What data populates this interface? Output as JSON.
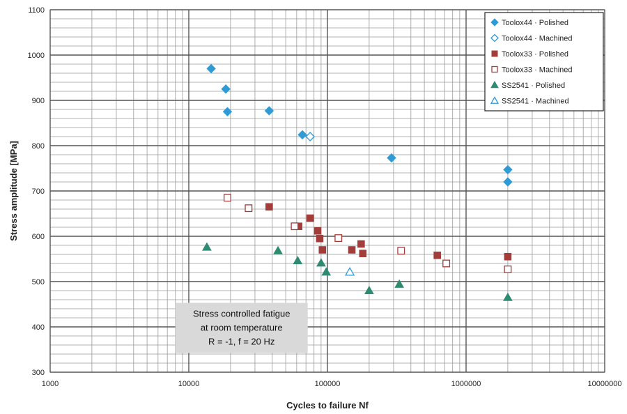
{
  "chart_data": {
    "type": "scatter",
    "title": "",
    "xlabel": "Cycles to failure Nf",
    "ylabel": "Stress amplitude [MPa]",
    "x_scale": "log",
    "xlim": [
      1000,
      10000000
    ],
    "ylim": [
      300,
      1100
    ],
    "x_ticks": [
      "1000",
      "10000",
      "100000",
      "1000000",
      "10000000"
    ],
    "y_ticks": [
      "300",
      "400",
      "500",
      "600",
      "700",
      "800",
      "900",
      "1000",
      "1100"
    ],
    "grid": true,
    "legend_position": "top-right",
    "annotation": [
      "Stress controlled fatigue",
      "at room temperature",
      "R = -1, f = 20 Hz"
    ],
    "series": [
      {
        "name": "Toolox44 · Polished",
        "marker": "diamond",
        "filled": true,
        "color": "#2e9bd6",
        "points": [
          [
            14500,
            970
          ],
          [
            18500,
            925
          ],
          [
            19000,
            875
          ],
          [
            38000,
            877
          ],
          [
            66000,
            824
          ],
          [
            290000,
            773
          ],
          [
            2000000,
            747
          ],
          [
            2000000,
            720
          ]
        ]
      },
      {
        "name": "Toolox44 · Machined",
        "marker": "diamond",
        "filled": false,
        "color": "#2e9bd6",
        "points": [
          [
            75000,
            820
          ]
        ]
      },
      {
        "name": "Toolox33 · Polished",
        "marker": "square",
        "filled": true,
        "color": "#a33d3a",
        "points": [
          [
            38000,
            665
          ],
          [
            62000,
            622
          ],
          [
            75000,
            640
          ],
          [
            85000,
            612
          ],
          [
            88000,
            595
          ],
          [
            92000,
            570
          ],
          [
            150000,
            570
          ],
          [
            175000,
            583
          ],
          [
            180000,
            562
          ],
          [
            620000,
            558
          ],
          [
            2000000,
            555
          ]
        ]
      },
      {
        "name": "Toolox33 · Machined",
        "marker": "square",
        "filled": false,
        "color": "#a33d3a",
        "points": [
          [
            19000,
            685
          ],
          [
            27000,
            662
          ],
          [
            58000,
            622
          ],
          [
            120000,
            596
          ],
          [
            340000,
            568
          ],
          [
            720000,
            540
          ],
          [
            2000000,
            527
          ]
        ]
      },
      {
        "name": "SS2541 · Polished",
        "marker": "triangle",
        "filled": true,
        "color": "#2e8b72",
        "points": [
          [
            13500,
            576
          ],
          [
            44000,
            568
          ],
          [
            61000,
            546
          ],
          [
            90000,
            541
          ],
          [
            98000,
            521
          ],
          [
            200000,
            480
          ],
          [
            330000,
            494
          ],
          [
            2000000,
            465
          ]
        ]
      },
      {
        "name": "SS2541 · Machined",
        "marker": "triangle",
        "filled": false,
        "color": "#2e9bd6",
        "points": [
          [
            145000,
            521
          ]
        ]
      }
    ]
  }
}
